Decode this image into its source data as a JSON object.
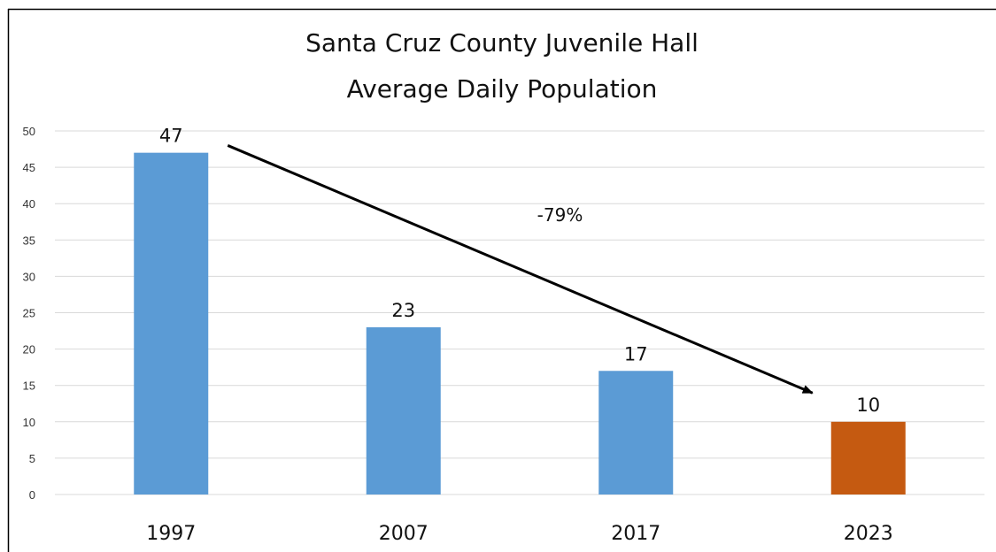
{
  "chart_data": {
    "type": "bar",
    "title": "Santa Cruz County Juvenile Hall",
    "subtitle": "Average Daily Population",
    "categories": [
      "1997",
      "2007",
      "2017",
      "2023"
    ],
    "values": [
      47,
      23,
      17,
      10
    ],
    "data_labels": [
      "47",
      "23",
      "17",
      "10"
    ],
    "bar_colors": [
      "#5b9bd5",
      "#5b9bd5",
      "#5b9bd5",
      "#c55a11"
    ],
    "ylim": [
      0,
      50
    ],
    "yticks": [
      "0",
      "5",
      "10",
      "15",
      "20",
      "25",
      "30",
      "35",
      "40",
      "45",
      "50"
    ],
    "grid": true,
    "legend": "none",
    "annotation": {
      "text": "-79%",
      "arrow_from": {
        "category": "1997",
        "value": 48
      },
      "arrow_to": {
        "category": "2023",
        "value": 17
      }
    },
    "colors": {
      "gridline": "#d9d9d9",
      "text": "#111111",
      "arrow": "#000000",
      "frame": "#000000"
    }
  }
}
